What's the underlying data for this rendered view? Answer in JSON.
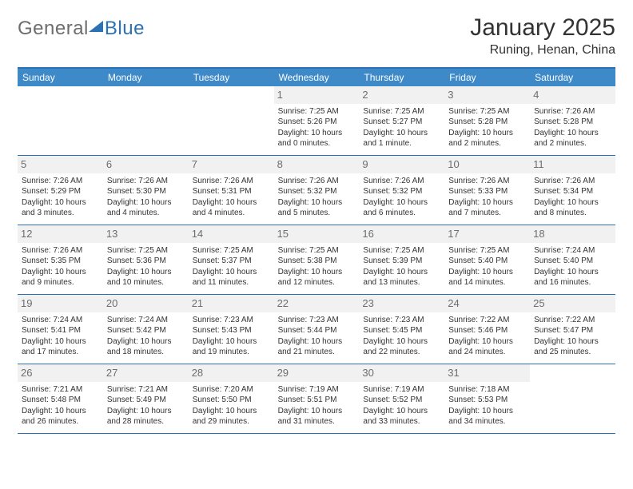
{
  "brand": {
    "part1": "General",
    "part2": "Blue"
  },
  "title": "January 2025",
  "location": "Runing, Henan, China",
  "colors": {
    "header_bg": "#3e89c8",
    "border": "#2a72b5",
    "daynum_bg": "#f1f1f1",
    "daynum_color": "#6d6d6d",
    "text": "#333333",
    "logo_gray": "#6d6d6d",
    "logo_blue": "#2a72b5"
  },
  "typography": {
    "title_fontsize": 30,
    "location_fontsize": 16,
    "header_fontsize": 12,
    "daynum_fontsize": 13,
    "cell_fontsize": 10
  },
  "day_names": [
    "Sunday",
    "Monday",
    "Tuesday",
    "Wednesday",
    "Thursday",
    "Friday",
    "Saturday"
  ],
  "weeks": [
    [
      {
        "empty": true
      },
      {
        "empty": true
      },
      {
        "empty": true
      },
      {
        "day": "1",
        "sunrise": "Sunrise: 7:25 AM",
        "sunset": "Sunset: 5:26 PM",
        "daylight": "Daylight: 10 hours and 0 minutes."
      },
      {
        "day": "2",
        "sunrise": "Sunrise: 7:25 AM",
        "sunset": "Sunset: 5:27 PM",
        "daylight": "Daylight: 10 hours and 1 minute."
      },
      {
        "day": "3",
        "sunrise": "Sunrise: 7:25 AM",
        "sunset": "Sunset: 5:28 PM",
        "daylight": "Daylight: 10 hours and 2 minutes."
      },
      {
        "day": "4",
        "sunrise": "Sunrise: 7:26 AM",
        "sunset": "Sunset: 5:28 PM",
        "daylight": "Daylight: 10 hours and 2 minutes."
      }
    ],
    [
      {
        "day": "5",
        "sunrise": "Sunrise: 7:26 AM",
        "sunset": "Sunset: 5:29 PM",
        "daylight": "Daylight: 10 hours and 3 minutes."
      },
      {
        "day": "6",
        "sunrise": "Sunrise: 7:26 AM",
        "sunset": "Sunset: 5:30 PM",
        "daylight": "Daylight: 10 hours and 4 minutes."
      },
      {
        "day": "7",
        "sunrise": "Sunrise: 7:26 AM",
        "sunset": "Sunset: 5:31 PM",
        "daylight": "Daylight: 10 hours and 4 minutes."
      },
      {
        "day": "8",
        "sunrise": "Sunrise: 7:26 AM",
        "sunset": "Sunset: 5:32 PM",
        "daylight": "Daylight: 10 hours and 5 minutes."
      },
      {
        "day": "9",
        "sunrise": "Sunrise: 7:26 AM",
        "sunset": "Sunset: 5:32 PM",
        "daylight": "Daylight: 10 hours and 6 minutes."
      },
      {
        "day": "10",
        "sunrise": "Sunrise: 7:26 AM",
        "sunset": "Sunset: 5:33 PM",
        "daylight": "Daylight: 10 hours and 7 minutes."
      },
      {
        "day": "11",
        "sunrise": "Sunrise: 7:26 AM",
        "sunset": "Sunset: 5:34 PM",
        "daylight": "Daylight: 10 hours and 8 minutes."
      }
    ],
    [
      {
        "day": "12",
        "sunrise": "Sunrise: 7:26 AM",
        "sunset": "Sunset: 5:35 PM",
        "daylight": "Daylight: 10 hours and 9 minutes."
      },
      {
        "day": "13",
        "sunrise": "Sunrise: 7:25 AM",
        "sunset": "Sunset: 5:36 PM",
        "daylight": "Daylight: 10 hours and 10 minutes."
      },
      {
        "day": "14",
        "sunrise": "Sunrise: 7:25 AM",
        "sunset": "Sunset: 5:37 PM",
        "daylight": "Daylight: 10 hours and 11 minutes."
      },
      {
        "day": "15",
        "sunrise": "Sunrise: 7:25 AM",
        "sunset": "Sunset: 5:38 PM",
        "daylight": "Daylight: 10 hours and 12 minutes."
      },
      {
        "day": "16",
        "sunrise": "Sunrise: 7:25 AM",
        "sunset": "Sunset: 5:39 PM",
        "daylight": "Daylight: 10 hours and 13 minutes."
      },
      {
        "day": "17",
        "sunrise": "Sunrise: 7:25 AM",
        "sunset": "Sunset: 5:40 PM",
        "daylight": "Daylight: 10 hours and 14 minutes."
      },
      {
        "day": "18",
        "sunrise": "Sunrise: 7:24 AM",
        "sunset": "Sunset: 5:40 PM",
        "daylight": "Daylight: 10 hours and 16 minutes."
      }
    ],
    [
      {
        "day": "19",
        "sunrise": "Sunrise: 7:24 AM",
        "sunset": "Sunset: 5:41 PM",
        "daylight": "Daylight: 10 hours and 17 minutes."
      },
      {
        "day": "20",
        "sunrise": "Sunrise: 7:24 AM",
        "sunset": "Sunset: 5:42 PM",
        "daylight": "Daylight: 10 hours and 18 minutes."
      },
      {
        "day": "21",
        "sunrise": "Sunrise: 7:23 AM",
        "sunset": "Sunset: 5:43 PM",
        "daylight": "Daylight: 10 hours and 19 minutes."
      },
      {
        "day": "22",
        "sunrise": "Sunrise: 7:23 AM",
        "sunset": "Sunset: 5:44 PM",
        "daylight": "Daylight: 10 hours and 21 minutes."
      },
      {
        "day": "23",
        "sunrise": "Sunrise: 7:23 AM",
        "sunset": "Sunset: 5:45 PM",
        "daylight": "Daylight: 10 hours and 22 minutes."
      },
      {
        "day": "24",
        "sunrise": "Sunrise: 7:22 AM",
        "sunset": "Sunset: 5:46 PM",
        "daylight": "Daylight: 10 hours and 24 minutes."
      },
      {
        "day": "25",
        "sunrise": "Sunrise: 7:22 AM",
        "sunset": "Sunset: 5:47 PM",
        "daylight": "Daylight: 10 hours and 25 minutes."
      }
    ],
    [
      {
        "day": "26",
        "sunrise": "Sunrise: 7:21 AM",
        "sunset": "Sunset: 5:48 PM",
        "daylight": "Daylight: 10 hours and 26 minutes."
      },
      {
        "day": "27",
        "sunrise": "Sunrise: 7:21 AM",
        "sunset": "Sunset: 5:49 PM",
        "daylight": "Daylight: 10 hours and 28 minutes."
      },
      {
        "day": "28",
        "sunrise": "Sunrise: 7:20 AM",
        "sunset": "Sunset: 5:50 PM",
        "daylight": "Daylight: 10 hours and 29 minutes."
      },
      {
        "day": "29",
        "sunrise": "Sunrise: 7:19 AM",
        "sunset": "Sunset: 5:51 PM",
        "daylight": "Daylight: 10 hours and 31 minutes."
      },
      {
        "day": "30",
        "sunrise": "Sunrise: 7:19 AM",
        "sunset": "Sunset: 5:52 PM",
        "daylight": "Daylight: 10 hours and 33 minutes."
      },
      {
        "day": "31",
        "sunrise": "Sunrise: 7:18 AM",
        "sunset": "Sunset: 5:53 PM",
        "daylight": "Daylight: 10 hours and 34 minutes."
      },
      {
        "empty": true
      }
    ]
  ]
}
